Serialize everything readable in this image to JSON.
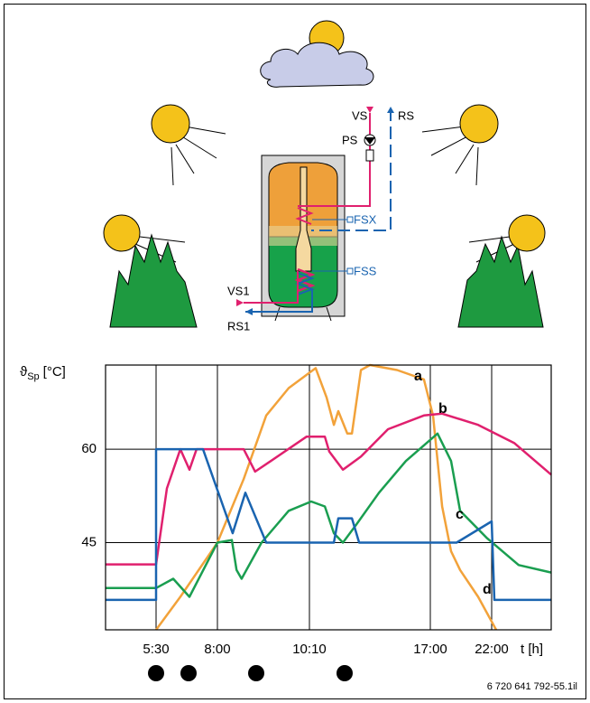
{
  "diagram": {
    "labels": {
      "vs": "VS",
      "rs": "RS",
      "ps": "PS",
      "fsx": "FSX",
      "fss": "FSS",
      "vs1": "VS1",
      "rs1": "RS1"
    }
  },
  "chart_data": {
    "type": "line",
    "y_label": {
      "symbol": "ϑ",
      "subscript": "Sp",
      "unit": "[°C]"
    },
    "x_label": "t [h]",
    "xlim": [
      3.5,
      26.9
    ],
    "xticks": [
      {
        "value": 5.5,
        "label": "5:30"
      },
      {
        "value": 8,
        "label": "8:00"
      },
      {
        "value": 10.17,
        "label": "10:10"
      },
      {
        "value": 17,
        "label": "17:00"
      },
      {
        "value": 22,
        "label": "22:00"
      }
    ],
    "ylim": [
      31,
      73.5
    ],
    "yticks": [
      45,
      60
    ],
    "grid": true,
    "series": [
      {
        "name": "a",
        "color": "#f2a23a",
        "x": [
          5.5,
          6.49,
          8,
          8.62,
          9.15,
          9.68,
          10.52,
          11.14,
          11.55,
          11.8,
          12.31,
          12.57,
          13.08,
          13.59,
          15.12,
          16.64,
          17.22,
          17.96,
          18.69,
          19.43,
          20.9,
          22.37
        ],
        "values": [
          31,
          36.3,
          45,
          55.2,
          65.4,
          69.8,
          73,
          68.3,
          63.9,
          66.1,
          62.5,
          62.5,
          72.7,
          73.5,
          72.7,
          71.2,
          65.4,
          50.8,
          43.6,
          40.6,
          36.3,
          31
        ]
      },
      {
        "name": "b",
        "color": "#e0206e",
        "x": [
          3.5,
          5.5,
          5.94,
          6.49,
          6.86,
          7.15,
          8.62,
          8.89,
          9.26,
          10.1,
          11.04,
          11.29,
          12.06,
          13.08,
          14.61,
          16.64,
          17.96,
          20.9,
          23.85,
          26.9
        ],
        "values": [
          41.5,
          41.5,
          53.7,
          60,
          56.7,
          60,
          60,
          56.4,
          58.1,
          62,
          62,
          59.6,
          56.7,
          58.8,
          63.2,
          65.4,
          65.7,
          63.9,
          61,
          55.9
        ]
      },
      {
        "name": "c",
        "color": "#1a9e50",
        "x": [
          3.5,
          5.5,
          6.2,
          6.86,
          8,
          8.34,
          8.45,
          8.57,
          9.04,
          9.68,
          10.27,
          11.04,
          11.55,
          12.06,
          12.82,
          14.1,
          15.62,
          17.59,
          18.69,
          19.43,
          21.63,
          24.22,
          26.9
        ],
        "values": [
          37.7,
          37.7,
          39.2,
          36.3,
          45,
          45.4,
          40.6,
          39.2,
          45,
          50.1,
          51.6,
          50.8,
          46.5,
          45,
          47.9,
          53,
          58.1,
          62.5,
          58.1,
          50.1,
          45.7,
          41.4,
          40.2
        ]
      },
      {
        "name": "d",
        "color": "#1a64b0",
        "x": [
          3.5,
          5.5,
          5.5,
          7.41,
          8.36,
          8.66,
          9.15,
          11.55,
          11.8,
          12.57,
          12.98,
          19.14,
          22,
          22.22,
          26.9
        ],
        "values": [
          35.8,
          35.8,
          60,
          60,
          46.5,
          53,
          45,
          45,
          48.9,
          48.9,
          45,
          45,
          48.4,
          35.8,
          35.8
        ]
      }
    ]
  },
  "footer": {
    "code": "6 720 641 792-55.1il"
  }
}
